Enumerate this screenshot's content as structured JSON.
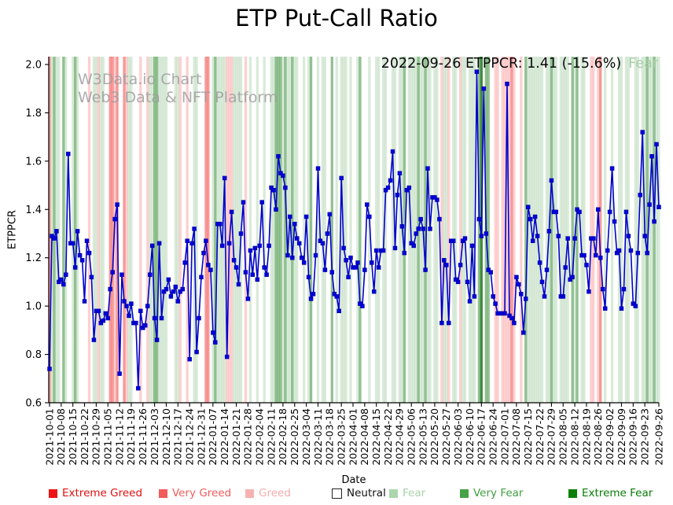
{
  "title": "ETP Put-Call Ratio",
  "watermark": {
    "line1": "W3Data.io Chart",
    "line2": "Web3 Data & NFT Platform"
  },
  "annotation": {
    "text": "2022-09-26 ETPPCR: 1.41 (-15.6%)",
    "status": "Fear",
    "status_color": "#a6cfa6"
  },
  "axes": {
    "y_label": "ETPPCR",
    "x_label": "Date",
    "y_ticks": [
      "2.0",
      "1.8",
      "1.6",
      "1.4",
      "1.2",
      "1.0",
      "0.8",
      "0.6"
    ],
    "y_tick_values": [
      2.0,
      1.8,
      1.6,
      1.4,
      1.2,
      1.0,
      0.8,
      0.6
    ]
  },
  "legend": {
    "items": [
      {
        "label": "Extreme Greed",
        "swatch_color": "#ed1515",
        "text_color": "#e11111",
        "border": false
      },
      {
        "label": "Very Greed",
        "swatch_color": "#f15b5b",
        "text_color": "#f15b5b",
        "border": false
      },
      {
        "label": "Greed",
        "swatch_color": "#f7b1b1",
        "text_color": "#f5abab",
        "border": false
      },
      {
        "label": "Neutral",
        "swatch_color": "#ffffff",
        "text_color": "#111111",
        "border": true
      },
      {
        "label": "Fear",
        "swatch_color": "#abd5ab",
        "text_color": "#a8d2a8",
        "border": false
      },
      {
        "label": "Very Fear",
        "swatch_color": "#46a246",
        "text_color": "#3f9f3f",
        "border": false
      },
      {
        "label": "Extreme Fear",
        "swatch_color": "#088008",
        "text_color": "#077d07",
        "border": false
      }
    ]
  },
  "chart_data": {
    "type": "line",
    "title": "ETP Put-Call Ratio",
    "xlabel": "Date",
    "ylabel": "ETPPCR",
    "ylim": [
      0.6,
      2.0
    ],
    "grid": false,
    "x_tick_interval_days": 5,
    "x_tick_labels": [
      "2021-10-01",
      "2021-10-08",
      "2021-10-15",
      "2021-10-22",
      "2021-10-29",
      "2021-11-05",
      "2021-11-12",
      "2021-11-19",
      "2021-11-26",
      "2021-12-03",
      "2021-12-10",
      "2021-12-17",
      "2021-12-24",
      "2021-12-31",
      "2022-01-07",
      "2022-01-14",
      "2022-01-21",
      "2022-01-28",
      "2022-02-04",
      "2022-02-11",
      "2022-02-18",
      "2022-02-25",
      "2022-03-04",
      "2022-03-11",
      "2022-03-18",
      "2022-03-25",
      "2022-04-01",
      "2022-04-08",
      "2022-04-15",
      "2022-04-22",
      "2022-04-29",
      "2022-05-06",
      "2022-05-13",
      "2022-05-20",
      "2022-05-27",
      "2022-06-03",
      "2022-06-10",
      "2022-06-17",
      "2022-06-24",
      "2022-07-01",
      "2022-07-08",
      "2022-07-15",
      "2022-07-22",
      "2022-07-29",
      "2022-08-05",
      "2022-08-12",
      "2022-08-19",
      "2022-08-26",
      "2022-09-02",
      "2022-09-09",
      "2022-09-16",
      "2022-09-23",
      "2022-09-26"
    ],
    "series": [
      {
        "name": "ETPPCR",
        "color": "#0000cc",
        "marker": "square",
        "values": [
          0.74,
          1.29,
          1.28,
          1.31,
          1.1,
          1.11,
          1.09,
          1.13,
          1.63,
          1.26,
          1.26,
          1.16,
          1.31,
          1.21,
          1.19,
          1.02,
          1.27,
          1.22,
          1.12,
          0.86,
          0.98,
          0.98,
          0.93,
          0.94,
          0.97,
          0.95,
          1.07,
          1.14,
          1.36,
          1.42,
          0.72,
          1.13,
          1.02,
          1.0,
          0.96,
          1.01,
          0.93,
          0.93,
          0.66,
          0.98,
          0.91,
          0.92,
          1.0,
          1.13,
          1.25,
          0.95,
          0.86,
          1.26,
          0.95,
          1.06,
          1.07,
          1.11,
          1.04,
          1.06,
          1.08,
          1.02,
          1.06,
          1.07,
          1.18,
          1.27,
          0.78,
          1.26,
          1.32,
          0.81,
          0.95,
          1.12,
          1.22,
          1.27,
          1.17,
          1.15,
          0.89,
          0.85,
          1.34,
          1.34,
          1.25,
          1.53,
          0.79,
          1.26,
          1.39,
          1.19,
          1.16,
          1.09,
          1.3,
          1.43,
          1.14,
          1.03,
          1.23,
          1.13,
          1.24,
          1.11,
          1.25,
          1.43,
          1.16,
          1.13,
          1.25,
          1.49,
          1.48,
          1.4,
          1.62,
          1.55,
          1.54,
          1.49,
          1.21,
          1.37,
          1.2,
          1.34,
          1.28,
          1.26,
          1.2,
          1.18,
          1.37,
          1.12,
          1.03,
          1.05,
          1.21,
          1.57,
          1.27,
          1.26,
          1.15,
          1.3,
          1.38,
          1.14,
          1.05,
          1.04,
          0.98,
          1.53,
          1.24,
          1.19,
          1.12,
          1.2,
          1.16,
          1.16,
          1.18,
          1.01,
          1.0,
          1.15,
          1.42,
          1.37,
          1.18,
          1.06,
          1.23,
          1.16,
          1.23,
          1.23,
          1.48,
          1.49,
          1.52,
          1.64,
          1.24,
          1.46,
          1.55,
          1.33,
          1.22,
          1.48,
          1.49,
          1.26,
          1.25,
          1.3,
          1.32,
          1.36,
          1.32,
          1.15,
          1.57,
          1.32,
          1.45,
          1.45,
          1.44,
          1.36,
          0.93,
          1.19,
          1.17,
          0.93,
          1.27,
          1.27,
          1.11,
          1.1,
          1.17,
          1.27,
          1.28,
          1.1,
          1.02,
          1.25,
          1.04,
          1.97,
          1.36,
          1.29,
          1.9,
          1.3,
          1.15,
          1.14,
          1.04,
          1.01,
          0.97,
          0.97,
          0.97,
          0.97,
          1.92,
          0.96,
          0.95,
          0.93,
          1.12,
          1.09,
          1.05,
          0.89,
          1.03,
          1.41,
          1.36,
          1.27,
          1.37,
          1.29,
          1.18,
          1.1,
          1.04,
          1.15,
          1.31,
          1.52,
          1.39,
          1.39,
          1.29,
          1.04,
          1.04,
          1.16,
          1.28,
          1.11,
          1.12,
          1.28,
          1.4,
          1.39,
          1.21,
          1.21,
          1.17,
          1.06,
          1.28,
          1.28,
          1.21,
          1.4,
          1.2,
          1.07,
          0.99,
          1.23,
          1.39,
          1.57,
          1.35,
          1.22,
          1.23,
          0.99,
          1.07,
          1.39,
          1.29,
          1.23,
          1.01,
          1.0,
          1.22,
          1.46,
          1.72,
          1.29,
          1.22,
          1.42,
          1.62,
          1.35,
          1.67,
          1.41
        ]
      }
    ],
    "background_bands": {
      "note": "one code per trading day; sentiment shading behind the line",
      "codes": "VFfFFNfFNNFfFNNNNGNFFGFFNNVVGVNNVGFFNNNGNNGFFffFFFFNNNFFGNNGNNFFNNNVVNFfFFFFGGGFFFFNGNFNNFNNFNNFFfffFfFFfFFNNFNFfNNFNFFNNfNFNFFFNFNNFfNNNFNNFFNFFNNFFNFFfNFFFFfFFfFFNFFNGFFGNFFNGFFNFFFNfENffNNGGNGGGGVGNNGNfFFFFFFFNFFfFFNFFFFNfFfNFFNNGGNGVNFNNFNNFFNFFNNFFNFFfFFfFF",
      "legend_map": {
        "R": "Extreme Greed",
        "V": "Very Greed",
        "G": "Greed",
        "N": "Neutral",
        "F": "Fear",
        "f": "Very Fear",
        "E": "Extreme Fear"
      },
      "colors": {
        "R": "rgba(255,0,0,0.80)",
        "V": "rgba(240,70,70,0.55)",
        "G": "rgba(250,150,150,0.45)",
        "F": "rgba(80,160,80,0.22)",
        "f": "rgba(55,140,55,0.55)",
        "E": "rgba(0,100,0,0.75)"
      }
    }
  }
}
